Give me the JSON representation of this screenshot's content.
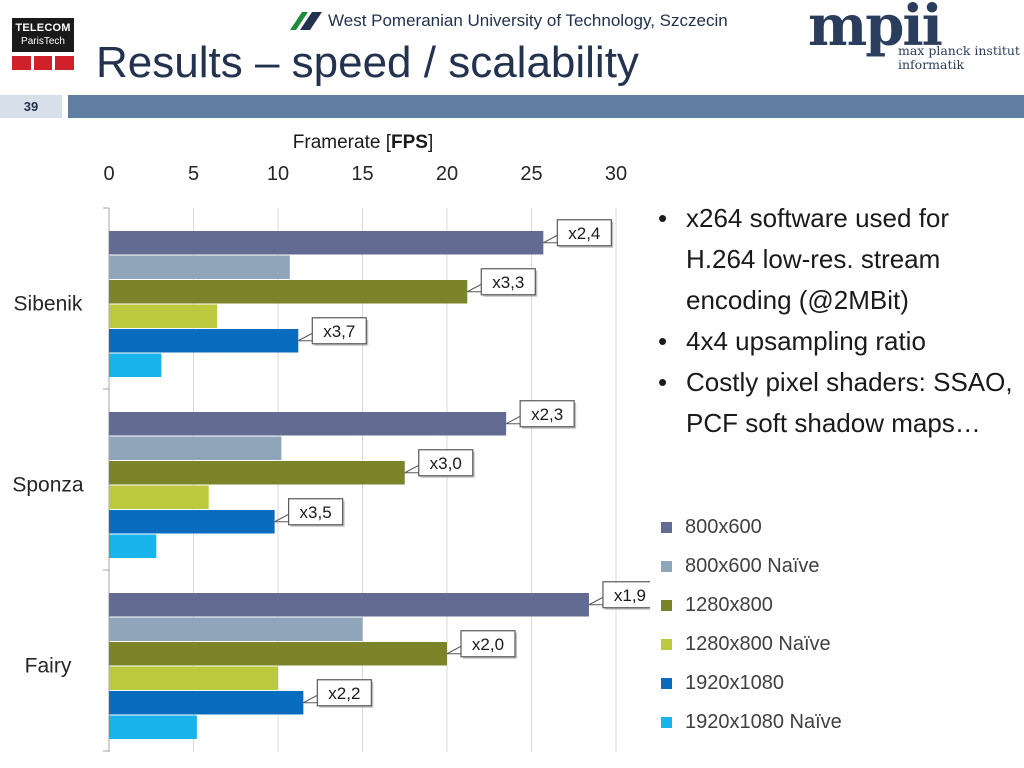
{
  "header": {
    "slide_title": "Results – speed / scalability",
    "slide_number": "39",
    "university": "West Pomeranian University of Technology, Szczecin",
    "telecom_line1": "TELECOM",
    "telecom_line2": "ParisTech",
    "mpi_word": "mpii",
    "mpi_line1": "max planck institut",
    "mpi_line2": "informatik"
  },
  "bullets": [
    "x264 software used for H.264 low-res. stream encoding (@2MBit)",
    "4x4 upsampling ratio",
    "Costly pixel shaders: SSAO, PCF soft shadow maps…"
  ],
  "chart_data": {
    "type": "bar",
    "orientation": "horizontal",
    "title": "Framerate [FPS]",
    "title_prefix": "Framerate [",
    "title_bold": "FPS",
    "title_suffix": "]",
    "xlim": [
      0,
      30
    ],
    "ticks": [
      0,
      5,
      10,
      15,
      20,
      25,
      30
    ],
    "grid": true,
    "categories": [
      "Sibenik",
      "Sponza",
      "Fairy"
    ],
    "series": [
      {
        "name": "800x600",
        "color": "#636b92",
        "values": [
          25.7,
          23.5,
          28.4
        ]
      },
      {
        "name": "800x600 Naïve",
        "color": "#8fa6ba",
        "values": [
          10.7,
          10.2,
          15.0
        ]
      },
      {
        "name": "1280x800",
        "color": "#7b8428",
        "values": [
          21.2,
          17.5,
          20.0
        ]
      },
      {
        "name": "1280x800 Naïve",
        "color": "#bcc93c",
        "values": [
          6.4,
          5.9,
          10.0
        ]
      },
      {
        "name": "1920x1080",
        "color": "#0a6cbf",
        "values": [
          11.2,
          9.8,
          11.5
        ]
      },
      {
        "name": "1920x1080 Naïve",
        "color": "#19b4ec",
        "values": [
          3.1,
          2.8,
          5.2
        ]
      }
    ],
    "callouts": [
      {
        "category": 0,
        "series": 0,
        "text": "x2,4"
      },
      {
        "category": 0,
        "series": 2,
        "text": "x3,3"
      },
      {
        "category": 0,
        "series": 4,
        "text": "x3,7"
      },
      {
        "category": 1,
        "series": 0,
        "text": "x2,3"
      },
      {
        "category": 1,
        "series": 2,
        "text": "x3,0"
      },
      {
        "category": 1,
        "series": 4,
        "text": "x3,5"
      },
      {
        "category": 2,
        "series": 0,
        "text": "x1,9"
      },
      {
        "category": 2,
        "series": 2,
        "text": "x2,0"
      },
      {
        "category": 2,
        "series": 4,
        "text": "x2,2"
      }
    ],
    "legend_position": "right"
  }
}
